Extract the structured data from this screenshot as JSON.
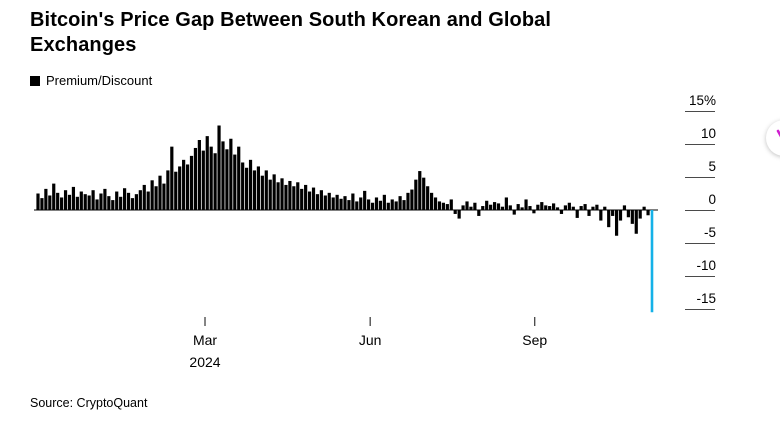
{
  "header": {
    "title": "Bitcoin's Price Gap Between South Korean and Global Exchanges"
  },
  "legend": {
    "label": "Premium/Discount",
    "swatch_color": "#000000"
  },
  "source": {
    "text": "Source: CryptoQuant"
  },
  "floating_button": {
    "icon": "lightning-icon",
    "color": "#cf1fcf"
  },
  "chart_data": {
    "type": "area",
    "title": "Bitcoin's Price Gap Between South Korean and Global Exchanges",
    "xlabel": "",
    "ylabel": "Premium/Discount (%)",
    "x_range": [
      "Dec 2023",
      "Dec 2024"
    ],
    "ylim": [
      -17.5,
      15.8
    ],
    "grid": false,
    "legend_position": "top-left",
    "series": [
      {
        "name": "Premium/Discount",
        "color": "#000000",
        "values": [
          2.5,
          1.8,
          3.2,
          2.2,
          4.0,
          2.6,
          1.9,
          3.0,
          2.3,
          3.5,
          2.0,
          2.8,
          2.4,
          2.2,
          3.0,
          1.6,
          2.5,
          3.2,
          2.1,
          1.5,
          2.8,
          2.0,
          3.3,
          2.6,
          1.8,
          2.4,
          3.0,
          3.8,
          2.8,
          4.5,
          3.6,
          5.2,
          4.0,
          6.0,
          9.6,
          5.8,
          6.6,
          7.6,
          6.9,
          8.2,
          9.4,
          10.6,
          9.0,
          11.2,
          9.6,
          8.6,
          12.8,
          10.4,
          9.2,
          10.8,
          8.4,
          9.6,
          7.2,
          6.4,
          7.6,
          6.0,
          6.6,
          5.2,
          6.0,
          4.6,
          5.4,
          4.2,
          4.8,
          3.8,
          4.4,
          3.6,
          4.2,
          3.2,
          3.8,
          2.8,
          3.4,
          2.4,
          3.0,
          2.2,
          2.6,
          1.9,
          2.3,
          1.7,
          2.1,
          1.5,
          2.5,
          1.3,
          1.9,
          2.9,
          1.6,
          1.1,
          1.9,
          1.4,
          2.3,
          1.1,
          1.6,
          1.3,
          2.1,
          1.5,
          2.6,
          3.1,
          4.6,
          5.9,
          4.9,
          3.6,
          2.6,
          1.9,
          1.3,
          1.1,
          0.9,
          1.6,
          -0.6,
          -1.3,
          0.7,
          1.3,
          0.5,
          1.1,
          -0.9,
          0.6,
          1.4,
          0.8,
          1.2,
          1.0,
          0.5,
          1.9,
          0.7,
          -0.7,
          0.9,
          0.4,
          1.6,
          0.6,
          -0.5,
          0.8,
          1.2,
          0.7,
          0.6,
          1.0,
          0.4,
          -0.6,
          0.7,
          1.1,
          0.5,
          -1.2,
          0.6,
          0.9,
          -0.9,
          0.5,
          0.8,
          -1.6,
          0.5,
          -2.6,
          -0.9,
          -3.9,
          -1.6,
          0.7,
          -1.1,
          -2.1,
          -3.6,
          -1.3,
          0.5,
          -0.8,
          -15.5
        ]
      }
    ],
    "highlight": {
      "index": 156,
      "value": -15.5,
      "color": "#14b1e8"
    },
    "y_ticks": [
      {
        "label": "15%",
        "value": 15
      },
      {
        "label": "10",
        "value": 10
      },
      {
        "label": "5",
        "value": 5
      },
      {
        "label": "0",
        "value": 0
      },
      {
        "label": "-5",
        "value": -5
      },
      {
        "label": "-10",
        "value": -10
      },
      {
        "label": "-15",
        "value": -15
      }
    ],
    "x_ticks": [
      {
        "label": "Mar",
        "year_label": "2024",
        "pos": 0.272
      },
      {
        "label": "Jun",
        "year_label": "",
        "pos": 0.541
      },
      {
        "label": "Sep",
        "year_label": "",
        "pos": 0.809
      }
    ]
  }
}
